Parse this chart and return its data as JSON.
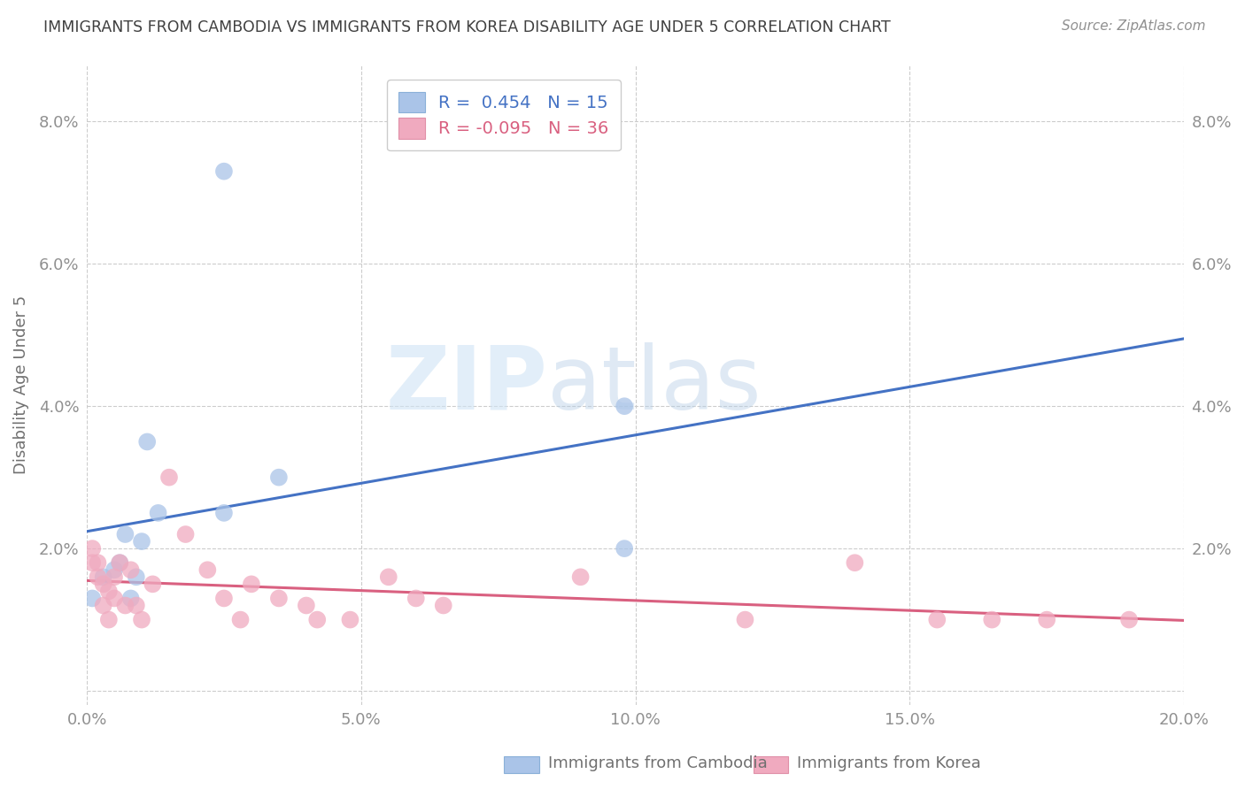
{
  "title": "IMMIGRANTS FROM CAMBODIA VS IMMIGRANTS FROM KOREA DISABILITY AGE UNDER 5 CORRELATION CHART",
  "source": "Source: ZipAtlas.com",
  "ylabel": "Disability Age Under 5",
  "xlim": [
    0.0,
    0.2
  ],
  "ylim": [
    -0.002,
    0.088
  ],
  "xticks": [
    0.0,
    0.05,
    0.1,
    0.15,
    0.2
  ],
  "yticks": [
    0.0,
    0.02,
    0.04,
    0.06,
    0.08
  ],
  "xtick_labels": [
    "0.0%",
    "5.0%",
    "10.0%",
    "15.0%",
    "20.0%"
  ],
  "ytick_labels": [
    "",
    "2.0%",
    "4.0%",
    "6.0%",
    "8.0%"
  ],
  "cambodia_color": "#aac4e8",
  "korea_color": "#f0aabf",
  "cambodia_line_color": "#4472c4",
  "korea_line_color": "#d96080",
  "cambodia_R": 0.454,
  "cambodia_N": 15,
  "korea_R": -0.095,
  "korea_N": 36,
  "legend_label_cambodia": "Immigrants from Cambodia",
  "legend_label_korea": "Immigrants from Korea",
  "watermark_zip": "ZIP",
  "watermark_atlas": "atlas",
  "background_color": "#ffffff",
  "grid_color": "#cccccc",
  "title_color": "#404040",
  "axis_label_color": "#707070",
  "tick_color": "#909090",
  "cambodia_x": [
    0.001,
    0.003,
    0.005,
    0.006,
    0.007,
    0.008,
    0.009,
    0.01,
    0.011,
    0.013,
    0.025,
    0.025,
    0.035,
    0.098,
    0.098
  ],
  "cambodia_y": [
    0.013,
    0.016,
    0.017,
    0.018,
    0.022,
    0.013,
    0.016,
    0.021,
    0.035,
    0.025,
    0.073,
    0.025,
    0.03,
    0.04,
    0.02
  ],
  "korea_x": [
    0.001,
    0.001,
    0.002,
    0.002,
    0.003,
    0.003,
    0.004,
    0.004,
    0.005,
    0.005,
    0.006,
    0.007,
    0.008,
    0.009,
    0.01,
    0.012,
    0.015,
    0.018,
    0.022,
    0.025,
    0.028,
    0.03,
    0.035,
    0.04,
    0.042,
    0.048,
    0.055,
    0.06,
    0.065,
    0.09,
    0.12,
    0.14,
    0.155,
    0.165,
    0.175,
    0.19
  ],
  "korea_y": [
    0.018,
    0.02,
    0.016,
    0.018,
    0.015,
    0.012,
    0.01,
    0.014,
    0.013,
    0.016,
    0.018,
    0.012,
    0.017,
    0.012,
    0.01,
    0.015,
    0.03,
    0.022,
    0.017,
    0.013,
    0.01,
    0.015,
    0.013,
    0.012,
    0.01,
    0.01,
    0.016,
    0.013,
    0.012,
    0.016,
    0.01,
    0.018,
    0.01,
    0.01,
    0.01,
    0.01
  ]
}
